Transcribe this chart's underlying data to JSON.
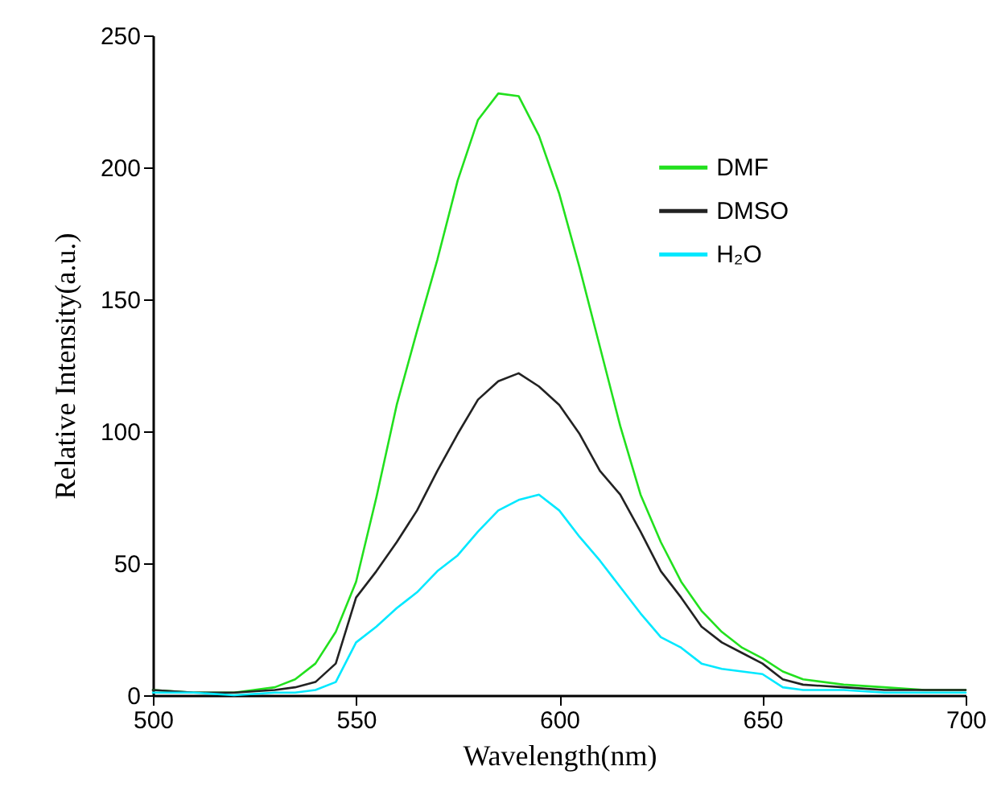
{
  "chart_data": {
    "type": "line",
    "xlabel": "Wavelength(nm)",
    "ylabel": "Relative Intensity(a.u.)",
    "x": [
      500,
      510,
      520,
      530,
      535,
      540,
      545,
      550,
      555,
      560,
      565,
      570,
      575,
      580,
      585,
      590,
      595,
      600,
      605,
      610,
      615,
      620,
      625,
      630,
      635,
      640,
      645,
      650,
      655,
      660,
      670,
      680,
      690,
      700
    ],
    "series": [
      {
        "name": "DMF",
        "color": "#22e01e",
        "values": [
          2,
          1,
          1,
          3,
          6,
          12,
          24,
          43,
          75,
          110,
          138,
          165,
          195,
          218,
          228,
          227,
          212,
          190,
          162,
          132,
          102,
          76,
          58,
          43,
          32,
          24,
          18,
          14,
          9,
          6,
          4,
          3,
          2,
          2
        ]
      },
      {
        "name": "DMSO",
        "color": "#222222",
        "values": [
          2,
          1,
          1,
          2,
          3,
          5,
          12,
          37,
          47,
          58,
          70,
          85,
          99,
          112,
          119,
          122,
          117,
          110,
          99,
          85,
          76,
          62,
          47,
          37,
          26,
          20,
          16,
          12,
          6,
          4,
          3,
          2,
          2,
          2
        ]
      },
      {
        "name": "H₂O",
        "color": "#00e8ff",
        "values": [
          1,
          1,
          0,
          1,
          1,
          2,
          5,
          20,
          26,
          33,
          39,
          47,
          53,
          62,
          70,
          74,
          76,
          70,
          60,
          51,
          41,
          31,
          22,
          18,
          12,
          10,
          9,
          8,
          3,
          2,
          2,
          1,
          1,
          1
        ]
      }
    ],
    "xlim": [
      500,
      700
    ],
    "xticks": [
      500,
      550,
      600,
      650,
      700
    ],
    "ylim": [
      0,
      250
    ],
    "yticks": [
      0,
      50,
      100,
      150,
      200,
      250
    ],
    "grid": false,
    "legend": "top right",
    "line_style": "solid",
    "marker": "none"
  }
}
